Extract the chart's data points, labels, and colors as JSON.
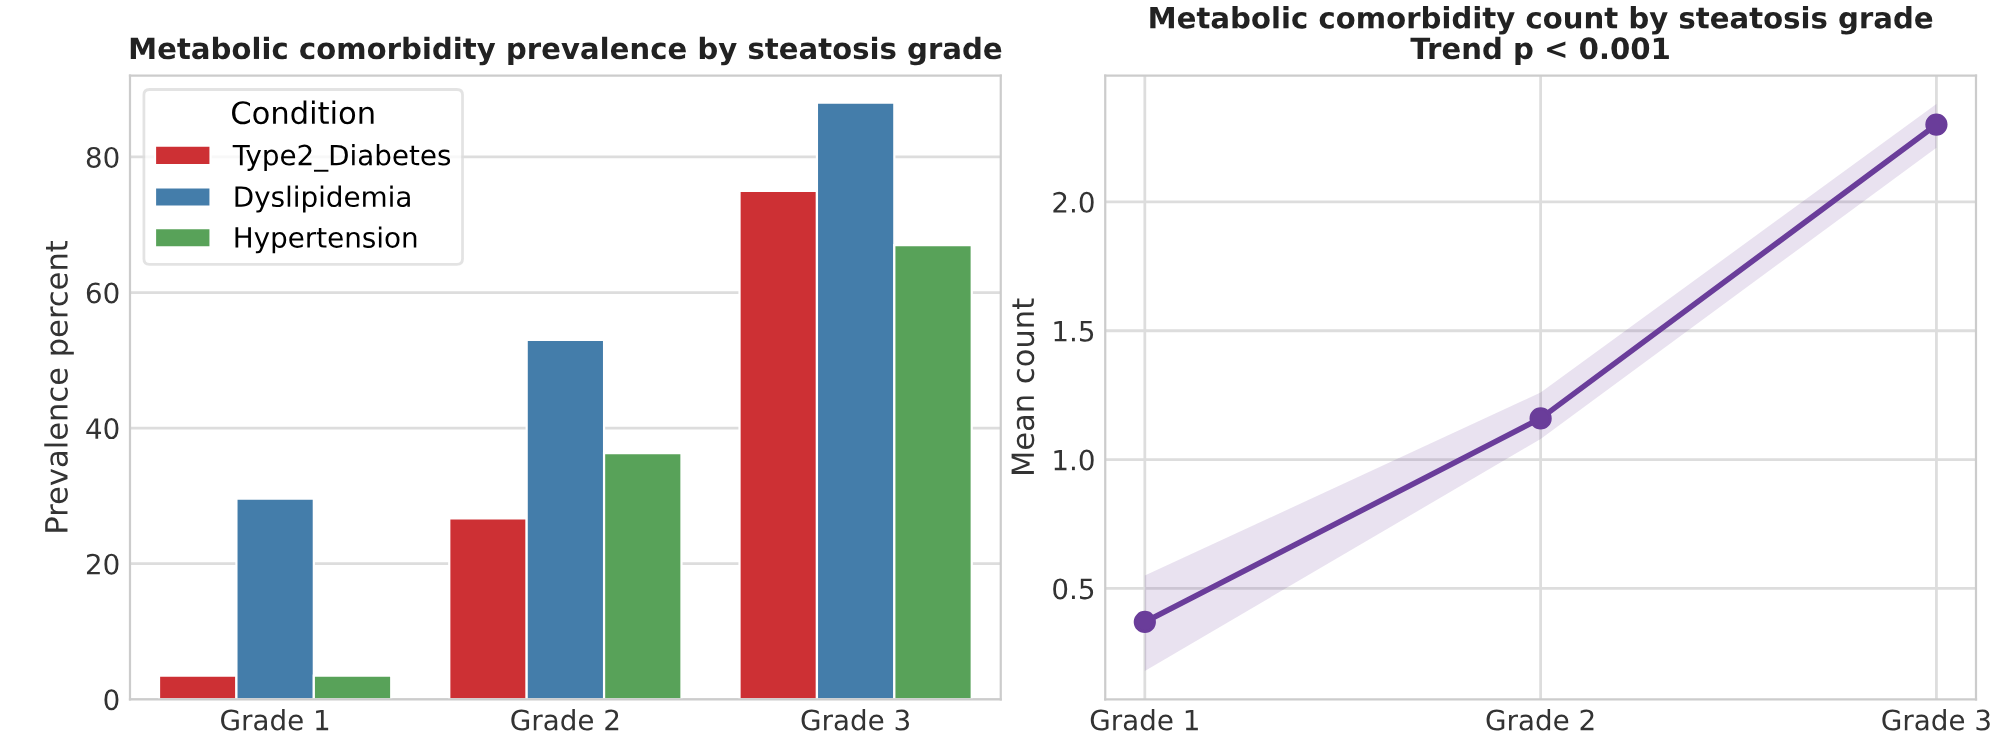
{
  "chart_data": [
    {
      "type": "bar",
      "title": "Metabolic comorbidity prevalence by steatosis grade",
      "ylabel": "Prevalence percent",
      "legend_title": "Condition",
      "legend": "top left",
      "grid": "y",
      "categories": [
        "Grade 1",
        "Grade 2",
        "Grade 3"
      ],
      "ylim": [
        0,
        92
      ],
      "yticks": [
        0,
        20,
        40,
        60,
        80
      ],
      "series": [
        {
          "name": "Type2_Diabetes",
          "color": "#cd3034",
          "values": [
            3.5,
            26.7,
            75
          ]
        },
        {
          "name": "Dyslipidemia",
          "color": "#447daa",
          "values": [
            29.6,
            53,
            88
          ]
        },
        {
          "name": "Hypertension",
          "color": "#58a259",
          "values": [
            3.5,
            36.3,
            67
          ]
        }
      ]
    },
    {
      "type": "line",
      "title": "Metabolic comorbidity count by steatosis grade",
      "subtitle": "Trend p < 0.001",
      "ylabel": "Mean count",
      "grid": true,
      "marker": "circle",
      "line_style": "solid",
      "categories": [
        "Grade 1",
        "Grade 2",
        "Grade 3"
      ],
      "ylim": [
        0.07,
        2.49
      ],
      "yticks": [
        0.5,
        {
          "value": 1,
          "label": "1.0"
        },
        1.5,
        {
          "value": 2,
          "label": "2.0"
        }
      ],
      "series": [
        {
          "color": "#6a3d9a",
          "values": [
            0.37,
            1.16,
            2.3
          ],
          "lower": [
            0.18,
            1.08,
            2.21
          ],
          "upper": [
            0.55,
            1.26,
            2.38
          ]
        }
      ]
    }
  ]
}
